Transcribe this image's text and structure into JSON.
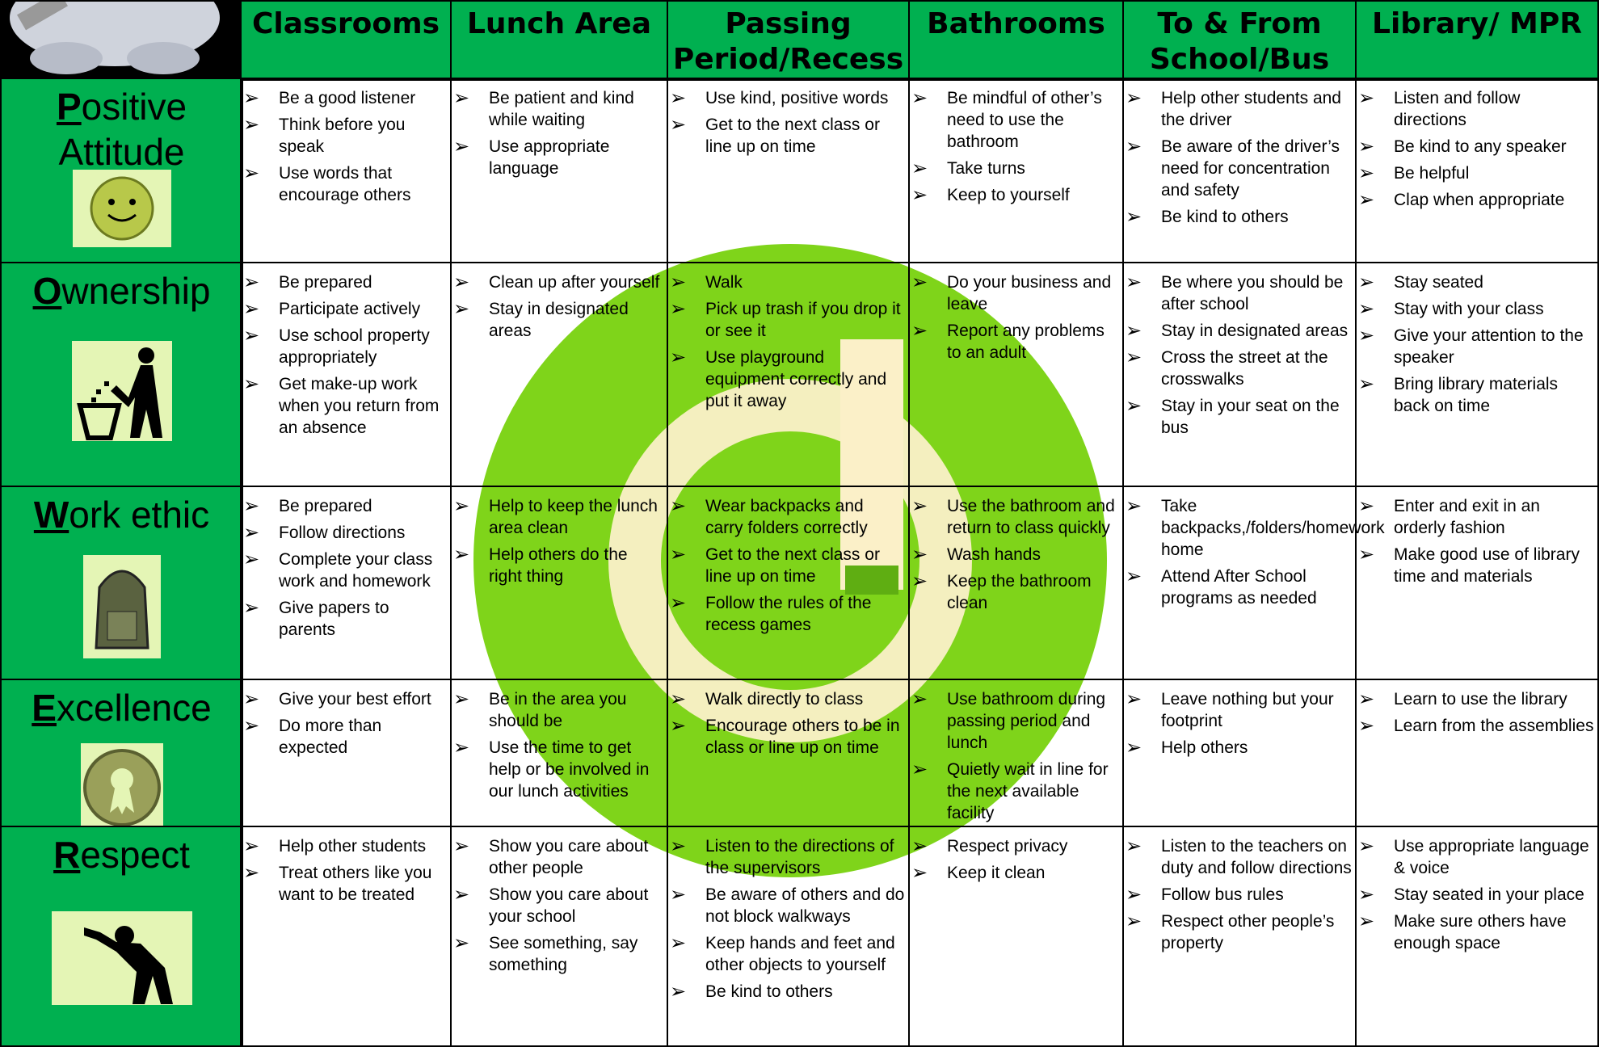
{
  "columns": [
    "Classrooms",
    "Lunch Area",
    "Passing Period/Recess",
    "Bathrooms",
    "To & From School/Bus",
    "Library/ MPR"
  ],
  "rows": [
    {
      "letter": "P",
      "rest": "ositive Attitude",
      "cells": [
        [
          "Be a good listener",
          "Think before you speak",
          "Use words that encourage others"
        ],
        [
          "Be patient and kind while waiting",
          "Use appropriate language"
        ],
        [
          "Use kind, positive words",
          "Get to the next class or line up on time"
        ],
        [
          "Be mindful of other’s need to use the bathroom",
          "Take turns",
          "Keep to yourself"
        ],
        [
          "Help other students and the driver",
          "Be aware of the driver’s need for concentration and safety",
          "Be kind to others"
        ],
        [
          "Listen and follow directions",
          "Be kind to any speaker",
          "Be helpful",
          "Clap when appropriate"
        ]
      ]
    },
    {
      "letter": "O",
      "rest": "wnership",
      "cells": [
        [
          "Be prepared",
          "Participate actively",
          "Use school property appropriately",
          "Get make-up work when you return from an absence"
        ],
        [
          "Clean up after yourself",
          "Stay in designated areas"
        ],
        [
          "Walk",
          "Pick up trash if you drop it or see it",
          "Use playground equipment correctly and put it away"
        ],
        [
          "Do your business and leave",
          "Report any problems to an adult"
        ],
        [
          "Be where you should be after school",
          "Stay in designated areas",
          "Cross the street at the crosswalks",
          "Stay in your seat on the bus"
        ],
        [
          "Stay seated",
          "Stay with your class",
          "Give your attention to the speaker",
          "Bring library materials back on time"
        ]
      ]
    },
    {
      "letter": "W",
      "rest": "ork ethic",
      "cells": [
        [
          "Be prepared",
          "Follow directions",
          "Complete your class work and homework",
          "Give papers to parents"
        ],
        [
          "Help to keep the lunch area clean",
          "Help others do the right thing"
        ],
        [
          "Wear backpacks and carry folders correctly",
          "Get to the next class or line up on time",
          "Follow the rules of the recess games"
        ],
        [
          "Use the bathroom and return to class quickly",
          "Wash hands",
          "Keep the bathroom clean"
        ],
        [
          "Take backpacks,/folders/homework home",
          "Attend After School programs as needed"
        ],
        [
          "Enter and exit in an orderly fashion",
          "Make good use of library time and materials"
        ]
      ]
    },
    {
      "letter": "E",
      "rest": "xcellence",
      "cells": [
        [
          "Give your best effort",
          "Do more than expected"
        ],
        [
          "Be in the area you should be",
          "Use the time to get help or be involved in our lunch activities"
        ],
        [
          "Walk directly to class",
          "Encourage others to be in class or line up on time"
        ],
        [
          "Use bathroom during passing period and  lunch",
          "Quietly wait in line for the next available facility"
        ],
        [
          "Leave nothing but your footprint",
          "Help others"
        ],
        [
          "Learn to use the library",
          "Learn from the assemblies"
        ]
      ]
    },
    {
      "letter": "R",
      "rest": "espect",
      "cells": [
        [
          "Help other students",
          "Treat others like you want to be treated"
        ],
        [
          "Show you care about other people",
          "Show you care about your school",
          "See something, say something"
        ],
        [
          "Listen to the directions of the supervisors",
          "Be aware of others and do not block walkways",
          "Keep hands and feet and other objects to yourself",
          "Be kind to others"
        ],
        [
          "Respect privacy",
          "Keep it clean"
        ],
        [
          "Listen to the teachers on duty and follow directions",
          "Follow bus rules",
          "Respect other people’s property"
        ],
        [
          "Use appropriate language & voice",
          "Stay seated in your place",
          "Make sure others have enough space"
        ]
      ]
    }
  ]
}
